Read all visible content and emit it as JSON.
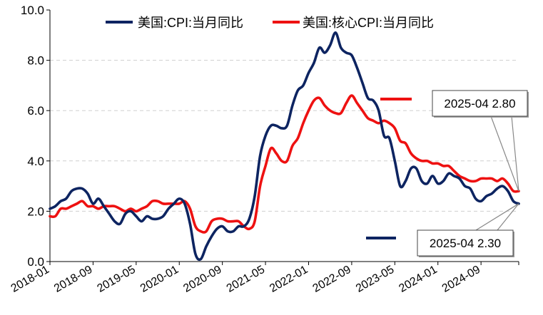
{
  "chart_data": {
    "type": "line",
    "title": "",
    "xlabel": "",
    "ylabel": "",
    "ylim": [
      0,
      10
    ],
    "yticks": [
      "0.0",
      "2.0",
      "4.0",
      "6.0",
      "8.0",
      "10.0"
    ],
    "xticks": [
      "2018-01",
      "2018-09",
      "2019-05",
      "2020-01",
      "2020-09",
      "2021-05",
      "2022-01",
      "2022-09",
      "2023-05",
      "2024-01",
      "2024-09"
    ],
    "grid": "horizontal dashed",
    "legend_position": "top",
    "x_start": "2018-01",
    "x_end": "2025-04",
    "series": [
      {
        "name": "美国:CPI:当月同比",
        "color": "#0d2461",
        "values": [
          2.1,
          2.2,
          2.4,
          2.5,
          2.8,
          2.9,
          2.9,
          2.7,
          2.3,
          2.5,
          2.2,
          1.9,
          1.6,
          1.5,
          1.9,
          2.0,
          1.8,
          1.6,
          1.8,
          1.7,
          1.7,
          1.8,
          2.1,
          2.3,
          2.5,
          2.3,
          1.5,
          0.3,
          0.1,
          0.6,
          1.0,
          1.3,
          1.4,
          1.2,
          1.2,
          1.4,
          1.4,
          1.7,
          2.6,
          4.2,
          5.0,
          5.4,
          5.4,
          5.3,
          5.4,
          6.2,
          6.8,
          7.0,
          7.5,
          7.9,
          8.5,
          8.3,
          8.6,
          9.1,
          8.5,
          8.3,
          8.2,
          7.7,
          7.1,
          6.5,
          6.4,
          6.0,
          5.0,
          4.9,
          4.0,
          3.0,
          3.2,
          3.7,
          3.7,
          3.2,
          3.1,
          3.4,
          3.1,
          3.2,
          3.5,
          3.4,
          3.3,
          3.0,
          2.9,
          2.5,
          2.4,
          2.6,
          2.7,
          2.9,
          3.0,
          2.8,
          2.4,
          2.3
        ],
        "annotation": "2025-04 2.30"
      },
      {
        "name": "美国:核心CPI:当月同比",
        "color": "#ee1111",
        "values": [
          1.8,
          1.8,
          2.1,
          2.1,
          2.2,
          2.3,
          2.4,
          2.2,
          2.2,
          2.1,
          2.2,
          2.2,
          2.2,
          2.1,
          2.0,
          2.1,
          2.0,
          2.1,
          2.2,
          2.4,
          2.4,
          2.3,
          2.3,
          2.3,
          2.3,
          2.4,
          2.1,
          1.4,
          1.2,
          1.2,
          1.6,
          1.7,
          1.7,
          1.6,
          1.6,
          1.6,
          1.4,
          1.3,
          1.6,
          3.0,
          3.8,
          4.5,
          4.3,
          4.0,
          4.0,
          4.6,
          4.9,
          5.5,
          6.0,
          6.4,
          6.5,
          6.2,
          6.0,
          5.9,
          5.9,
          6.3,
          6.6,
          6.3,
          6.0,
          5.7,
          5.6,
          5.5,
          5.6,
          5.5,
          5.3,
          4.8,
          4.7,
          4.3,
          4.1,
          4.0,
          4.0,
          3.9,
          3.9,
          3.8,
          3.8,
          3.6,
          3.4,
          3.3,
          3.2,
          3.2,
          3.3,
          3.3,
          3.3,
          3.2,
          3.3,
          3.1,
          2.8,
          2.8
        ],
        "annotation": "2025-04 2.80"
      }
    ]
  }
}
